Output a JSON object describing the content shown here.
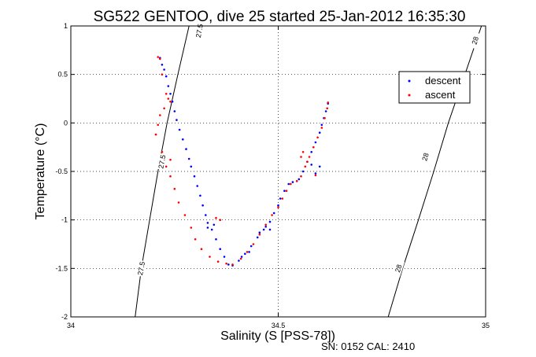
{
  "chart_data": {
    "type": "scatter",
    "title": "SG522 GENTOO, dive 25 started 25-Jan-2012 16:35:30",
    "xlabel": "Salinity (S [PSS-78])",
    "ylabel": "Temperature (°C)",
    "xlim": [
      34,
      35
    ],
    "ylim": [
      -2,
      1
    ],
    "xticks": [
      34,
      34.5,
      35
    ],
    "xtick_labels": [
      "34",
      "34.5",
      "35"
    ],
    "yticks": [
      -2,
      -1.5,
      -1,
      -0.5,
      0,
      0.5,
      1
    ],
    "ytick_labels": [
      "-2",
      "-1.5",
      "-1",
      "-0.5",
      "0",
      "0.5",
      "1"
    ],
    "grid": true,
    "legend_position": "top-right",
    "series": [
      {
        "name": "descent",
        "color": "#0000ff",
        "marker": "point",
        "points": [
          [
            34.215,
            0.67
          ],
          [
            34.22,
            0.6
          ],
          [
            34.225,
            0.55
          ],
          [
            34.23,
            0.48
          ],
          [
            34.235,
            0.38
          ],
          [
            34.24,
            0.3
          ],
          [
            34.245,
            0.22
          ],
          [
            34.25,
            0.12
          ],
          [
            34.255,
            0.03
          ],
          [
            34.262,
            -0.07
          ],
          [
            34.27,
            -0.17
          ],
          [
            34.278,
            -0.27
          ],
          [
            34.285,
            -0.37
          ],
          [
            34.29,
            -0.45
          ],
          [
            34.298,
            -0.55
          ],
          [
            34.305,
            -0.65
          ],
          [
            34.312,
            -0.75
          ],
          [
            34.318,
            -0.85
          ],
          [
            34.325,
            -0.95
          ],
          [
            34.33,
            -1.03
          ],
          [
            34.34,
            -1.1
          ],
          [
            34.35,
            -1.2
          ],
          [
            34.36,
            -1.3
          ],
          [
            34.37,
            -1.38
          ],
          [
            34.38,
            -1.46
          ],
          [
            34.39,
            -1.47
          ],
          [
            34.405,
            -1.42
          ],
          [
            34.42,
            -1.35
          ],
          [
            34.435,
            -1.27
          ],
          [
            34.45,
            -1.18
          ],
          [
            34.465,
            -1.1
          ],
          [
            34.48,
            -1.02
          ],
          [
            34.49,
            -0.93
          ],
          [
            34.5,
            -0.85
          ],
          [
            34.505,
            -0.78
          ],
          [
            34.515,
            -0.7
          ],
          [
            34.525,
            -0.63
          ],
          [
            34.535,
            -0.61
          ],
          [
            34.545,
            -0.6
          ],
          [
            34.55,
            -0.58
          ],
          [
            34.56,
            -0.5
          ],
          [
            34.57,
            -0.4
          ],
          [
            34.58,
            -0.3
          ],
          [
            34.59,
            -0.2
          ],
          [
            34.6,
            -0.1
          ],
          [
            34.605,
            -0.02
          ],
          [
            34.61,
            0.05
          ],
          [
            34.615,
            0.12
          ],
          [
            34.62,
            0.2
          ],
          [
            34.6,
            -0.45
          ],
          [
            34.59,
            -0.52
          ],
          [
            34.58,
            -0.43
          ],
          [
            34.345,
            -1.05
          ],
          [
            34.33,
            -1.08
          ],
          [
            34.48,
            -1.1
          ],
          [
            34.47,
            -1.07
          ],
          [
            34.43,
            -1.33
          ],
          [
            34.412,
            -1.38
          ],
          [
            34.455,
            -1.13
          ]
        ]
      },
      {
        "name": "ascent",
        "color": "#ff0000",
        "marker": "point",
        "points": [
          [
            34.21,
            0.68
          ],
          [
            34.215,
            0.66
          ],
          [
            34.22,
            0.5
          ],
          [
            34.23,
            0.3
          ],
          [
            34.235,
            0.25
          ],
          [
            34.24,
            0.22
          ],
          [
            34.225,
            0.15
          ],
          [
            34.215,
            0.08
          ],
          [
            34.21,
            -0.02
          ],
          [
            34.205,
            -0.12
          ],
          [
            34.22,
            -0.3
          ],
          [
            34.23,
            -0.45
          ],
          [
            34.24,
            -0.55
          ],
          [
            34.25,
            -0.68
          ],
          [
            34.26,
            -0.82
          ],
          [
            34.275,
            -0.95
          ],
          [
            34.29,
            -1.08
          ],
          [
            34.3,
            -1.2
          ],
          [
            34.315,
            -1.3
          ],
          [
            34.335,
            -1.38
          ],
          [
            34.355,
            -1.43
          ],
          [
            34.375,
            -1.45
          ],
          [
            34.39,
            -1.46
          ],
          [
            34.41,
            -1.4
          ],
          [
            34.425,
            -1.33
          ],
          [
            34.44,
            -1.25
          ],
          [
            34.455,
            -1.15
          ],
          [
            34.47,
            -1.05
          ],
          [
            34.485,
            -0.95
          ],
          [
            34.5,
            -0.87
          ],
          [
            34.51,
            -0.78
          ],
          [
            34.52,
            -0.7
          ],
          [
            34.53,
            -0.63
          ],
          [
            34.545,
            -0.6
          ],
          [
            34.555,
            -0.55
          ],
          [
            34.565,
            -0.45
          ],
          [
            34.575,
            -0.35
          ],
          [
            34.585,
            -0.25
          ],
          [
            34.595,
            -0.15
          ],
          [
            34.605,
            -0.05
          ],
          [
            34.612,
            0.05
          ],
          [
            34.618,
            0.15
          ],
          [
            34.62,
            0.21
          ],
          [
            34.59,
            -0.54
          ],
          [
            34.57,
            -0.4
          ],
          [
            34.56,
            -0.3
          ],
          [
            34.555,
            -0.35
          ],
          [
            34.36,
            -1.0
          ],
          [
            34.35,
            -0.98
          ],
          [
            34.24,
            -0.38
          ]
        ]
      }
    ],
    "contours": [
      {
        "label": "27.5",
        "path": [
          [
            34.155,
            -2
          ],
          [
            34.17,
            -1.5
          ],
          [
            34.19,
            -1.0
          ],
          [
            34.21,
            -0.5
          ],
          [
            34.232,
            0.0
          ],
          [
            34.258,
            0.5
          ],
          [
            34.285,
            1.0
          ]
        ],
        "label_positions": [
          [
            34.17,
            -1.5
          ],
          [
            34.22,
            -0.4
          ],
          [
            34.31,
            0.95
          ]
        ]
      },
      {
        "label": "28",
        "path": [
          [
            34.765,
            -2
          ],
          [
            34.8,
            -1.5
          ],
          [
            34.838,
            -1.0
          ],
          [
            34.875,
            -0.5
          ],
          [
            34.91,
            0.0
          ],
          [
            34.95,
            0.5
          ],
          [
            34.99,
            1.0
          ]
        ],
        "label_positions": [
          [
            34.79,
            -1.5
          ],
          [
            34.855,
            -0.35
          ],
          [
            34.975,
            0.85
          ]
        ]
      }
    ],
    "footer": "SN: 0152  CAL: 2410"
  }
}
